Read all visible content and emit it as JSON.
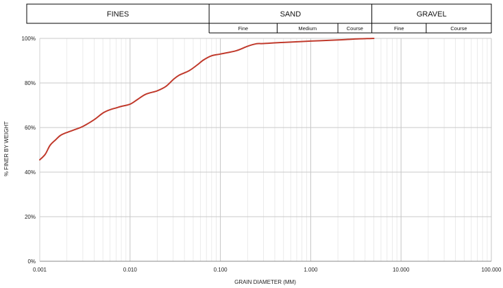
{
  "chart_data": {
    "type": "line",
    "title": "",
    "xlabel": "GRAIN DIAMETER (MM)",
    "ylabel": "% FINER BY WEIGHT",
    "x_scale": "log",
    "xlim": [
      0.001,
      100
    ],
    "ylim": [
      0,
      100
    ],
    "x_ticks": [
      0.001,
      0.01,
      0.1,
      1,
      10,
      100
    ],
    "x_tick_labels": [
      "0.001",
      "0.010",
      "0.100",
      "1.000",
      "10.000",
      "100.000"
    ],
    "y_ticks": [
      0,
      20,
      40,
      60,
      80,
      100
    ],
    "y_tick_labels": [
      "0%",
      "20%",
      "40%",
      "60%",
      "80%",
      "100%"
    ],
    "grid": true,
    "legend": "none",
    "series": [
      {
        "color": "#c0392b",
        "points": [
          [
            0.001,
            45.5
          ],
          [
            0.00115,
            48
          ],
          [
            0.0013,
            52
          ],
          [
            0.0015,
            54.5
          ],
          [
            0.0017,
            56.5
          ],
          [
            0.002,
            57.8
          ],
          [
            0.0025,
            59.2
          ],
          [
            0.003,
            60.5
          ],
          [
            0.004,
            63.5
          ],
          [
            0.005,
            66.5
          ],
          [
            0.006,
            68
          ],
          [
            0.007,
            68.8
          ],
          [
            0.008,
            69.5
          ],
          [
            0.01,
            70.5
          ],
          [
            0.012,
            72.5
          ],
          [
            0.015,
            75
          ],
          [
            0.02,
            76.5
          ],
          [
            0.025,
            78.5
          ],
          [
            0.03,
            81.5
          ],
          [
            0.035,
            83.5
          ],
          [
            0.045,
            85.5
          ],
          [
            0.055,
            88
          ],
          [
            0.065,
            90.3
          ],
          [
            0.08,
            92.2
          ],
          [
            0.1,
            93
          ],
          [
            0.15,
            94.5
          ],
          [
            0.2,
            96.5
          ],
          [
            0.25,
            97.6
          ],
          [
            0.3,
            97.7
          ],
          [
            0.5,
            98.2
          ],
          [
            1,
            98.8
          ],
          [
            2,
            99.3
          ],
          [
            3,
            99.7
          ],
          [
            5,
            100
          ]
        ]
      }
    ]
  },
  "classification_band": {
    "groups": [
      {
        "label": "FINES",
        "from": 0.001,
        "to": 0.075,
        "subs": []
      },
      {
        "label": "SAND",
        "from": 0.075,
        "to": 4.75,
        "subs": [
          {
            "label": "Fine",
            "from": 0.075,
            "to": 0.425
          },
          {
            "label": "Medium",
            "from": 0.425,
            "to": 2.0
          },
          {
            "label": "Course",
            "from": 2.0,
            "to": 4.75
          }
        ]
      },
      {
        "label": "GRAVEL",
        "from": 4.75,
        "to": 75,
        "subs": [
          {
            "label": "Fine",
            "from": 4.75,
            "to": 19
          },
          {
            "label": "Course",
            "from": 19,
            "to": 75
          }
        ]
      }
    ]
  }
}
